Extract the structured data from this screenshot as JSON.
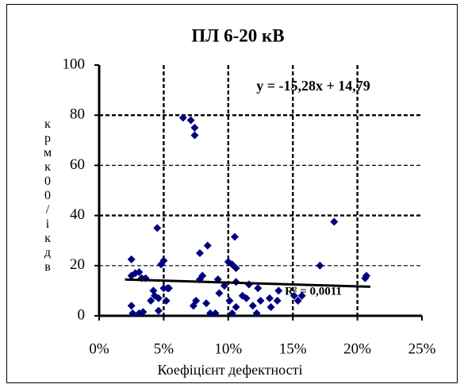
{
  "chart_data": {
    "type": "scatter",
    "title": "ПЛ 6-20 кВ",
    "x_label": "Коефіцієнт дефектності",
    "y_label": "крмк00/ікдв",
    "equation": "y = -15,28x + 14,79",
    "r_squared": "R² = 0,0011",
    "color": "#000080",
    "grid": true,
    "xlim": [
      0,
      0.25
    ],
    "xticks": [
      {
        "value": 0,
        "label": "0%"
      },
      {
        "value": 0.05,
        "label": "5%"
      },
      {
        "value": 0.1,
        "label": "10%"
      },
      {
        "value": 0.15,
        "label": "15%"
      },
      {
        "value": 0.2,
        "label": "20%"
      },
      {
        "value": 0.25,
        "label": "25%"
      }
    ],
    "ylim": [
      0,
      100
    ],
    "yticks": [
      0,
      20,
      40,
      60,
      80,
      100
    ],
    "x": [
      0.025,
      0.025,
      0.028,
      0.031,
      0.033,
      0.036,
      0.025,
      0.026,
      0.031,
      0.034,
      0.045,
      0.042,
      0.043,
      0.046,
      0.05,
      0.048,
      0.05,
      0.053,
      0.052,
      0.054,
      0.04,
      0.046,
      0.065,
      0.071,
      0.074,
      0.074,
      0.073,
      0.075,
      0.078,
      0.08,
      0.078,
      0.084,
      0.083,
      0.086,
      0.09,
      0.093,
      0.092,
      0.097,
      0.1,
      0.103,
      0.106,
      0.101,
      0.103,
      0.106,
      0.106,
      0.105,
      0.111,
      0.114,
      0.116,
      0.119,
      0.122,
      0.123,
      0.125,
      0.132,
      0.133,
      0.138,
      0.139,
      0.151,
      0.154,
      0.157,
      0.182,
      0.171,
      0.206,
      0.207
    ],
    "values": [
      22.5,
      16,
      17,
      17.4,
      15,
      15,
      4,
      1,
      1,
      1.5,
      35,
      10,
      8,
      7,
      22,
      20.5,
      11,
      11,
      6,
      11,
      6,
      2,
      79,
      78,
      75,
      72,
      4,
      6,
      14.5,
      16,
      25,
      28,
      5,
      1,
      1,
      9,
      14.5,
      12,
      21.5,
      20.5,
      19,
      6,
      1,
      13.5,
      3.5,
      31.5,
      8,
      7,
      12.5,
      4,
      1,
      11,
      6,
      7,
      3.5,
      6,
      10,
      8,
      6,
      8,
      37.5,
      20,
      15,
      16
    ],
    "trendline": {
      "x": [
        0.02,
        0.21
      ],
      "values": [
        14.48,
        11.58
      ]
    }
  }
}
